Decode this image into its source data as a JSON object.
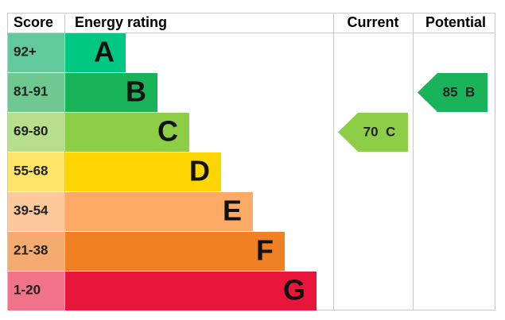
{
  "header": {
    "score": "Score",
    "rating": "Energy rating",
    "current": "Current",
    "potential": "Potential"
  },
  "bands": [
    {
      "score": "92+",
      "letter": "A",
      "color": "#00c781",
      "score_color": "#62c99c"
    },
    {
      "score": "81-91",
      "letter": "B",
      "color": "#19b459",
      "score_color": "#6fc88f"
    },
    {
      "score": "69-80",
      "letter": "C",
      "color": "#8dce46",
      "score_color": "#b6de8d"
    },
    {
      "score": "55-68",
      "letter": "D",
      "color": "#ffd500",
      "score_color": "#ffe46a"
    },
    {
      "score": "39-54",
      "letter": "E",
      "color": "#fcaa65",
      "score_color": "#fdc89c"
    },
    {
      "score": "21-38",
      "letter": "F",
      "color": "#ef8023",
      "score_color": "#f5ab70"
    },
    {
      "score": "1-20",
      "letter": "G",
      "color": "#e9153b",
      "score_color": "#f1738a"
    }
  ],
  "current": {
    "value": 70,
    "band": "C"
  },
  "potential": {
    "value": 85,
    "band": "B"
  }
}
